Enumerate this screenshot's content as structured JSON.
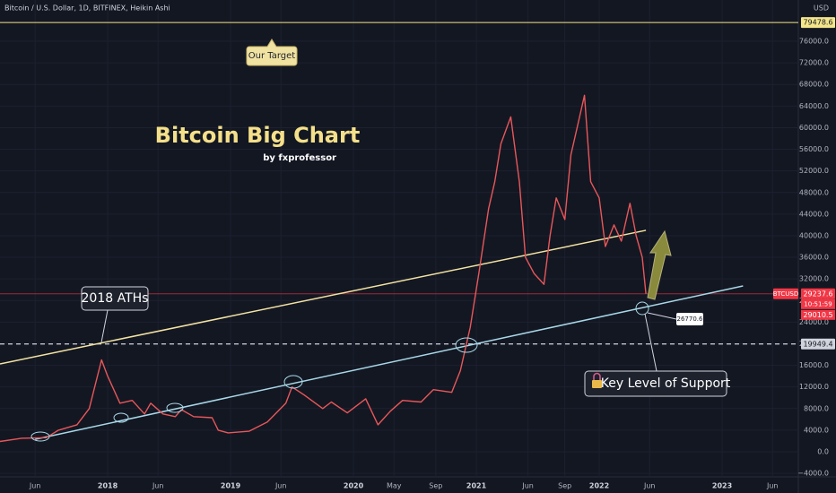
{
  "chart_data": {
    "type": "line",
    "title": "Bitcoin / U.S. Dollar, 1D, BITFINEX, Heikin Ashi",
    "unit": "USD",
    "symbol": "BTCUSD",
    "countdown": "10:51:59",
    "headline": "Bitcoin Big Chart",
    "byline": "by fxprofessor",
    "annotations": {
      "target": "Our Target",
      "aths": "2018 ATHs",
      "support": "Key Level of Support",
      "support_touch": 26770.6
    },
    "xlim": [
      2017.124,
      2023.62
    ],
    "ylim": [
      -4650,
      83640
    ],
    "xticks": [
      {
        "value": 2017.41,
        "label": "Jun"
      },
      2018,
      {
        "value": 2018.41,
        "label": "Jun"
      },
      2019,
      {
        "value": 2019.41,
        "label": "Jun"
      },
      2020,
      {
        "value": 2020.33,
        "label": "May"
      },
      {
        "value": 2020.67,
        "label": "Sep"
      },
      2021,
      {
        "value": 2021.42,
        "label": "Jun"
      },
      {
        "value": 2021.72,
        "label": "Sep"
      },
      2022,
      {
        "value": 2022.41,
        "label": "Jun"
      },
      2023,
      {
        "value": 2023.41,
        "label": "Jun"
      }
    ],
    "yticks": [
      {
        "value": -4000,
        "label": "−4000.0"
      },
      {
        "value": 0,
        "label": "0.0"
      },
      {
        "value": 4000,
        "label": "4000.0"
      },
      {
        "value": 8000,
        "label": "8000.0"
      },
      {
        "value": 12000,
        "label": "12000.0"
      },
      {
        "value": 16000,
        "label": "16000.0"
      },
      {
        "value": 20000,
        "label": "20000.0"
      },
      {
        "value": 24000,
        "label": "24000.0"
      },
      {
        "value": 28000,
        "label": "28000.0"
      },
      {
        "value": 32000,
        "label": "32000.0"
      },
      {
        "value": 36000,
        "label": "36000.0"
      },
      {
        "value": 40000,
        "label": "40000.0"
      },
      {
        "value": 44000,
        "label": "44000.0"
      },
      {
        "value": 48000,
        "label": "48000.0"
      },
      {
        "value": 52000,
        "label": "52000.0"
      },
      {
        "value": 56000,
        "label": "56000.0"
      },
      {
        "value": 60000,
        "label": "60000.0"
      },
      {
        "value": 64000,
        "label": "64000.0"
      },
      {
        "value": 68000,
        "label": "68000.0"
      },
      {
        "value": 72000,
        "label": "72000.0"
      },
      {
        "value": 76000,
        "label": "76000.0"
      }
    ],
    "grid": true,
    "series": [
      {
        "color": "#e8575a",
        "x": [
          2017.124,
          2017.3,
          2017.5,
          2017.6,
          2017.75,
          2017.85,
          2017.95,
          2018.0,
          2018.1,
          2018.2,
          2018.3,
          2018.35,
          2018.45,
          2018.55,
          2018.6,
          2018.7,
          2018.85,
          2018.9,
          2018.98,
          2019.15,
          2019.3,
          2019.45,
          2019.5,
          2019.6,
          2019.75,
          2019.82,
          2019.95,
          2020.1,
          2020.2,
          2020.3,
          2020.4,
          2020.55,
          2020.65,
          2020.8,
          2020.87,
          2020.95,
          2021.02,
          2021.1,
          2021.15,
          2021.2,
          2021.28,
          2021.35,
          2021.4,
          2021.47,
          2021.55,
          2021.6,
          2021.65,
          2021.72,
          2021.77,
          2021.85,
          2021.88,
          2021.93,
          2022.0,
          2022.05,
          2022.12,
          2022.18,
          2022.25,
          2022.3,
          2022.35,
          2022.38
        ],
        "values": [
          1900,
          2500,
          2600,
          4000,
          5000,
          8000,
          17000,
          14000,
          9000,
          9500,
          7000,
          9000,
          7000,
          6500,
          7800,
          6500,
          6300,
          4000,
          3500,
          3800,
          5500,
          9000,
          12000,
          10500,
          8000,
          9200,
          7200,
          9800,
          5000,
          7500,
          9500,
          9200,
          11500,
          11000,
          15000,
          23000,
          33000,
          45000,
          50000,
          57000,
          62000,
          50000,
          36000,
          33000,
          31000,
          40000,
          47000,
          43000,
          55000,
          63000,
          66000,
          50000,
          47000,
          38000,
          42000,
          39000,
          46000,
          40000,
          36000,
          29237.6
        ]
      }
    ],
    "levels": [
      {
        "value": 79478.6,
        "color": "#f3e58a",
        "style": "solid"
      },
      {
        "value": 29237.6,
        "color": "#f23645",
        "style": "solid"
      },
      {
        "value": 19949.4,
        "color": "#d1d4dc",
        "style": "dashed"
      }
    ],
    "bid_price": 29010.5,
    "trendlines": [
      {
        "color": "#f3e3a2",
        "x": [
          2017.124,
          2022.38
        ],
        "values": [
          16266,
          41000
        ]
      },
      {
        "color": "#a8d8e8",
        "x": [
          2017.41,
          2023.17
        ],
        "values": [
          2300,
          30700
        ]
      }
    ]
  }
}
